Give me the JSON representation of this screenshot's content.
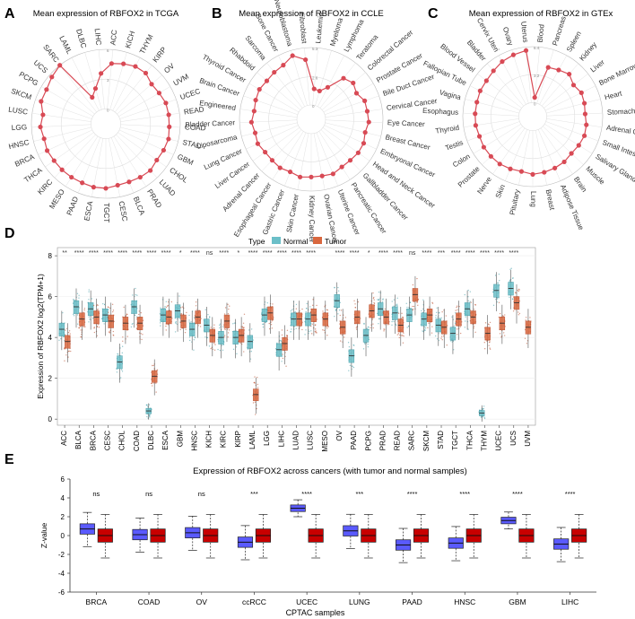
{
  "chart_data": [
    {
      "panel": "A",
      "type": "radar",
      "title": "Mean expression of RBFOX2 in TCGA",
      "categories": [
        "ACC",
        "KICH",
        "THYM",
        "KIRP",
        "OV",
        "UVM",
        "UCEC",
        "READ",
        "COAD",
        "STAD",
        "GBM",
        "CHOL",
        "LUAD",
        "PRAD",
        "BLCA",
        "CESC",
        "TGCT",
        "ESCA",
        "PAAD",
        "MESO",
        "KIRC",
        "THCA",
        "BRCA",
        "HNSC",
        "LGG",
        "LUSC",
        "SKCM",
        "PCPG",
        "UCS",
        "SARC",
        "LAML",
        "DLBC",
        "LIHC"
      ],
      "values": [
        4.6,
        4.8,
        5.0,
        5.0,
        4.6,
        4.7,
        4.9,
        4.9,
        4.9,
        5.0,
        4.9,
        4.8,
        5.0,
        4.9,
        4.8,
        4.8,
        5.0,
        5.0,
        4.9,
        4.9,
        4.9,
        4.9,
        5.0,
        4.9,
        5.1,
        4.9,
        5.4,
        5.4,
        5.7,
        6.0,
        1.5,
        2.2,
        3.6
      ],
      "rmax": 6,
      "rings": [
        0,
        3,
        6
      ]
    },
    {
      "panel": "B",
      "type": "radar",
      "title": "Mean expression of RBFOX2 in CCLE",
      "categories": [
        "Leukemia",
        "Myeloma",
        "Lymphoma",
        "Teratoma",
        "Colorectal Cancer",
        "Prostate Cancer",
        "Bile Duct Cancer",
        "Cervical Cancer",
        "Eye Cancer",
        "Breast Cancer",
        "Embryonal Cancer",
        "Head and Neck Cancer",
        "Gallbladder Cancer",
        "Pancreatic Cancer",
        "Uterine Cancer",
        "Ovarian Cancer",
        "Kidney Cancer",
        "Skin Cancer",
        "Gastric Cancer",
        "Esophageal Cancer",
        "Adrenal Cancer",
        "Liver Cancer",
        "Lung Cancer",
        "Liposarcoma",
        "Bladder Cancer",
        "Engineered",
        "Brain Cancer",
        "Thyroid Cancer",
        "Rhabdoid",
        "Sarcoma",
        "Bone Cancer",
        "Neuroblastoma",
        "Fibroblast"
      ],
      "values": [
        1.5,
        1.4,
        2.0,
        3.5,
        3.8,
        3.5,
        3.9,
        3.9,
        4.0,
        3.8,
        4.0,
        4.0,
        3.9,
        3.9,
        4.1,
        4.0,
        4.0,
        4.1,
        3.9,
        4.0,
        3.9,
        3.9,
        4.1,
        4.0,
        4.2,
        4.0,
        4.1,
        4.2,
        4.1,
        4.2,
        4.3,
        4.8,
        4.2
      ],
      "rmax": 5.3,
      "rings": [
        0,
        2.6,
        5.3
      ]
    },
    {
      "panel": "C",
      "type": "radar",
      "title": "Mean expression of RBFOX2 in GTEx",
      "categories": [
        "Blood",
        "Pancreas",
        "Spleen",
        "Kidney",
        "Liver",
        "Bone Marrow",
        "Heart",
        "Stomach",
        "Adrenal Gland",
        "Small Intestine",
        "Salivary Gland",
        "Muscle",
        "Brain",
        "Adipose Tissue",
        "Breast",
        "Lung",
        "Pituitary",
        "Skin",
        "Nerve",
        "Prostate",
        "Colon",
        "Testis",
        "Thyroid",
        "Esophagus",
        "Vagina",
        "Fallopian Tube",
        "Blood Vessel",
        "Bladder",
        "Cervix Uteri",
        "Ovary",
        "Uterus"
      ],
      "values": [
        0.6,
        4.3,
        4.5,
        4.8,
        4.3,
        4.6,
        4.5,
        4.4,
        4.6,
        4.7,
        4.6,
        4.5,
        4.7,
        4.8,
        4.9,
        5.0,
        4.8,
        4.9,
        5.0,
        5.0,
        5.0,
        4.9,
        5.0,
        5.0,
        5.0,
        5.1,
        5.1,
        5.3,
        5.6,
        5.8,
        6.0
      ],
      "rmax": 6.4,
      "rings": [
        0,
        3.2,
        6.4
      ]
    },
    {
      "panel": "D",
      "type": "box",
      "title": "",
      "legend_title": "Type",
      "legend": [
        "Normal",
        "Tumor"
      ],
      "colors": {
        "Normal": "#6bbfc8",
        "Tumor": "#d9673e"
      },
      "ylabel": "Expression of RBFOX2 log2(TPM+1)",
      "ylim": [
        -0.3,
        8.4
      ],
      "yticks": [
        0,
        2,
        4,
        6,
        8
      ],
      "categories": [
        "ACC",
        "BLCA",
        "BRCA",
        "CESC",
        "CHOL",
        "COAD",
        "DLBC",
        "ESCA",
        "GBM",
        "HNSC",
        "KICH",
        "KIRC",
        "KIRP",
        "LAML",
        "LGG",
        "LIHC",
        "LUAD",
        "LUSC",
        "MESO",
        "OV",
        "PAAD",
        "PCPG",
        "PRAD",
        "READ",
        "SARC",
        "SKCM",
        "STAD",
        "TGCT",
        "THCA",
        "THYM",
        "UCEC",
        "UCS",
        "UVM"
      ],
      "significance": [
        "**",
        "****",
        "****",
        "****",
        "****",
        "****",
        "****",
        "****",
        "*",
        "****",
        "ns",
        "****",
        "*",
        "****",
        "****",
        "****",
        "****",
        "****",
        "",
        "****",
        "****",
        "*",
        "****",
        "****",
        "ns",
        "****",
        "***",
        "****",
        "****",
        "****",
        "****",
        "****",
        ""
      ],
      "normal_median": [
        4.4,
        5.5,
        5.4,
        5.1,
        2.8,
        5.5,
        0.4,
        5.1,
        5.3,
        4.4,
        4.6,
        4.0,
        4.0,
        3.8,
        5.1,
        3.4,
        4.9,
        4.9,
        null,
        5.8,
        3.1,
        4.1,
        5.4,
        5.2,
        5.1,
        4.9,
        4.6,
        4.2,
        5.4,
        0.3,
        6.3,
        6.4,
        null
      ],
      "tumor_median": [
        3.8,
        4.9,
        5.0,
        4.8,
        4.7,
        4.7,
        2.1,
        5.0,
        4.8,
        5.0,
        4.1,
        4.8,
        4.1,
        1.2,
        5.2,
        3.7,
        4.9,
        5.1,
        4.9,
        4.5,
        5.0,
        5.3,
        5.0,
        4.6,
        6.1,
        5.1,
        4.5,
        4.9,
        5.0,
        4.2,
        4.7,
        5.7,
        4.5
      ]
    },
    {
      "panel": "E",
      "type": "box",
      "title": "Expression of RBFOX2 across cancers (with tumor and normal samples)",
      "xlabel": "CPTAC samples",
      "ylabel": "Z-value",
      "ylim": [
        -6,
        6
      ],
      "yticks": [
        -6,
        -4,
        -2,
        0,
        2,
        4,
        6
      ],
      "colors": {
        "Normal": "#5a5aff",
        "Tumor": "#c80000"
      },
      "categories": [
        "BRCA",
        "COAD",
        "OV",
        "ccRCC",
        "UCEC",
        "LUNG",
        "PAAD",
        "HNSC",
        "GBM",
        "LIHC"
      ],
      "significance": [
        "ns",
        "ns",
        "ns",
        "***",
        "****",
        "***",
        "****",
        "****",
        "****",
        "****"
      ],
      "normal_median": [
        0.7,
        0.1,
        0.3,
        -0.7,
        2.9,
        0.5,
        -1.0,
        -0.8,
        1.6,
        -0.9
      ],
      "tumor_median": [
        0.0,
        0.0,
        0.0,
        0.0,
        0.0,
        0.0,
        0.0,
        0.0,
        0.0,
        0.0
      ]
    }
  ]
}
